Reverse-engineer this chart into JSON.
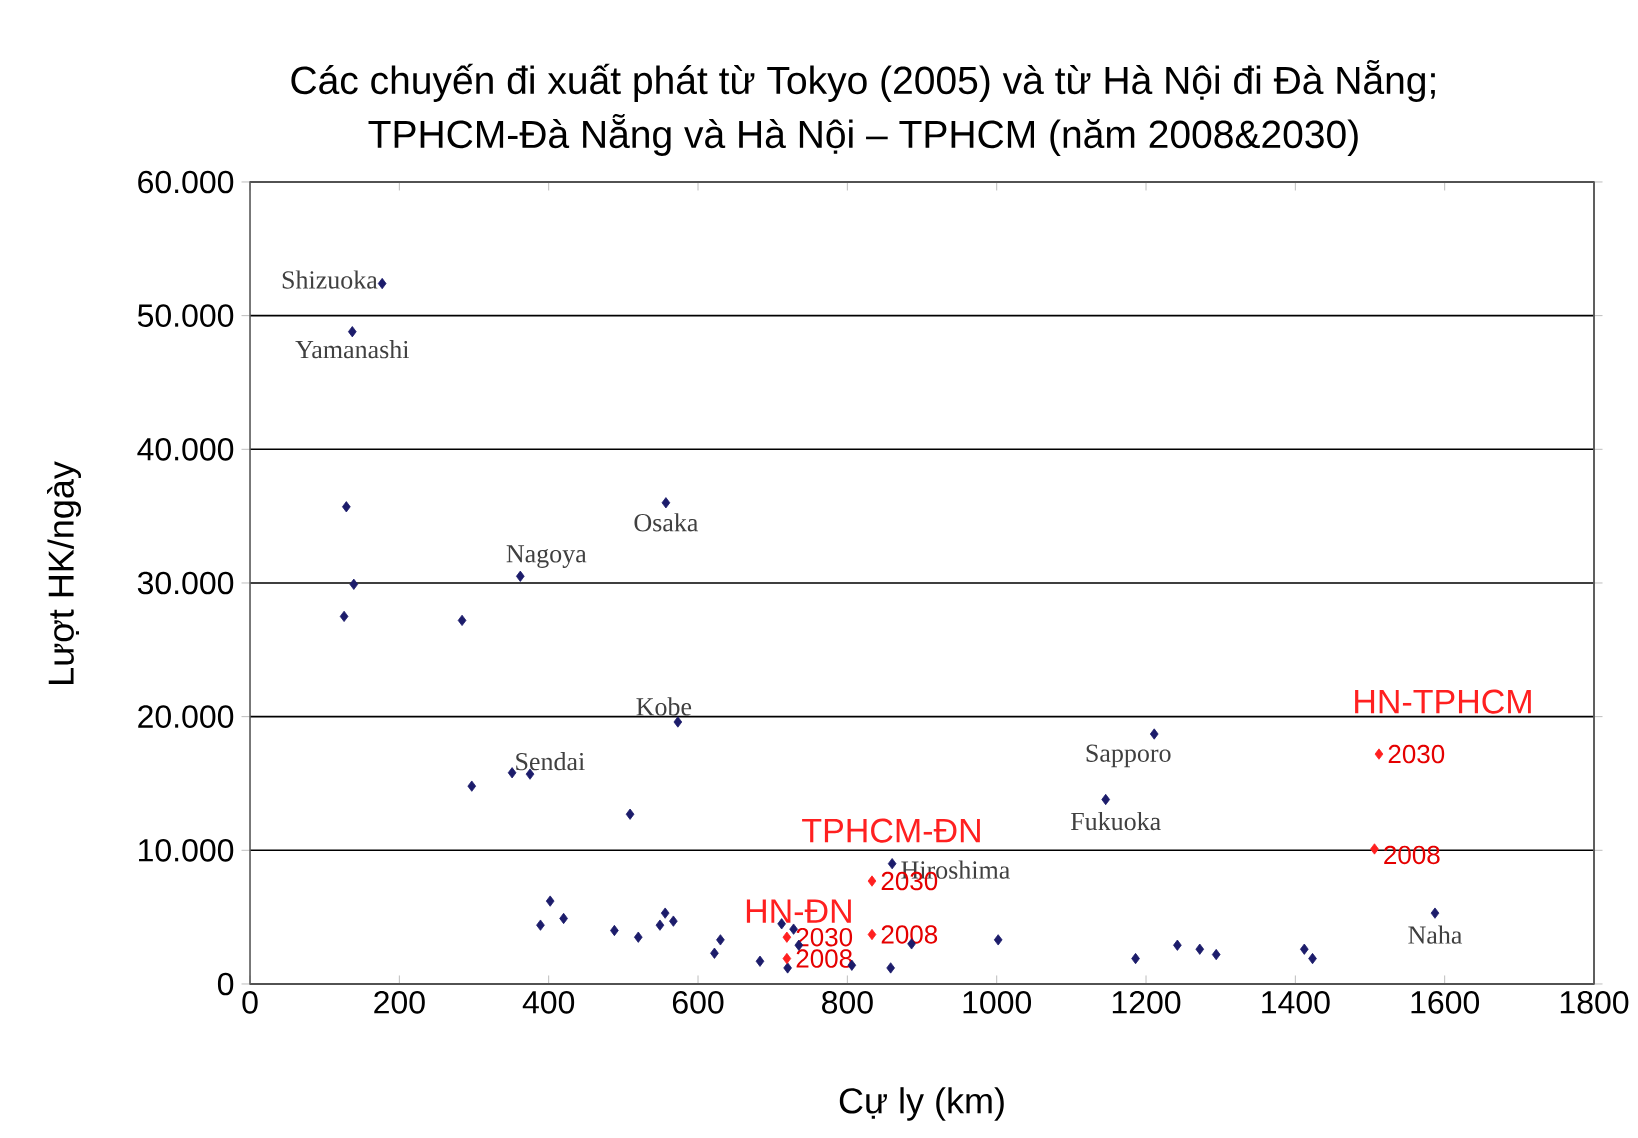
{
  "chart_data": {
    "type": "scatter",
    "title": "Các chuyến đi xuất phát từ Tokyo (2005) và từ Hà Nội đi Đà Nẵng; TPHCM-Đà Nẵng và Hà Nội – TPHCM (năm 2008&2030)",
    "xlabel": "Cự ly (km)",
    "ylabel": "Lượt HK/ngày",
    "xlim": [
      0,
      1800
    ],
    "xticks": [
      0,
      200,
      400,
      600,
      800,
      1000,
      1200,
      1400,
      1600,
      1800
    ],
    "ylim": [
      0,
      60000
    ],
    "yticks": [
      0,
      {
        "value": 10000,
        "label": "10.000"
      },
      {
        "value": 20000,
        "label": "20.000"
      },
      {
        "value": 30000,
        "label": "30.000"
      },
      {
        "value": 40000,
        "label": "40.000"
      },
      {
        "value": 50000,
        "label": "50.000"
      },
      {
        "value": 60000,
        "label": "60.000"
      }
    ],
    "grid": "y",
    "marker": "diamond",
    "series": [
      {
        "color": "#1c1c6b",
        "x": [
          177,
          137,
          129,
          139,
          126,
          284,
          362,
          557,
          573,
          351,
          375,
          297,
          509,
          1211,
          1146,
          860,
          402,
          389,
          420,
          488,
          520,
          556,
          549,
          567,
          630,
          622,
          683,
          712,
          728,
          735,
          720,
          806,
          858,
          886,
          1002,
          1186,
          1242,
          1272,
          1294,
          1412,
          1423,
          1587
        ],
        "values": [
          52400,
          48800,
          35700,
          29900,
          27500,
          27200,
          30500,
          36000,
          19600,
          15800,
          15700,
          14800,
          12700,
          18700,
          13800,
          9000,
          6200,
          4400,
          4900,
          4000,
          3500,
          5300,
          4400,
          4700,
          3300,
          2300,
          1700,
          4500,
          4100,
          2900,
          1200,
          1400,
          1200,
          3000,
          3300,
          1900,
          2900,
          2600,
          2200,
          2600,
          1900,
          5300
        ]
      },
      {
        "name": "HN-TPHCM",
        "color": "#ff2020",
        "x": [
          1512,
          1506
        ],
        "values": [
          17200,
          10100
        ]
      },
      {
        "name": "TPHCM-ĐN",
        "color": "#ff2020",
        "x": [
          833,
          833
        ],
        "values": [
          7700,
          3700
        ]
      },
      {
        "name": "HN-ĐN",
        "color": "#ff2020",
        "x": [
          719,
          719
        ],
        "values": [
          3500,
          1900
        ]
      }
    ],
    "annotations": [
      {
        "text": "Shizuoka",
        "x": 177,
        "y": 52400
      },
      {
        "text": "Yamanashi",
        "x": 137,
        "y": 48800
      },
      {
        "text": "Nagoya",
        "x": 362,
        "y": 30500
      },
      {
        "text": "Osaka",
        "x": 557,
        "y": 36000
      },
      {
        "text": "Kobe",
        "x": 573,
        "y": 19600
      },
      {
        "text": "Sendai",
        "x": 351,
        "y": 15800
      },
      {
        "text": "Sapporo",
        "x": 1211,
        "y": 18700
      },
      {
        "text": "Fukuoka",
        "x": 1146,
        "y": 13800
      },
      {
        "text": "Hiroshima",
        "x": 860,
        "y": 9000
      },
      {
        "text": "Naha",
        "x": 1587,
        "y": 5300
      },
      {
        "text": "2030",
        "x": 1512,
        "y": 17200
      },
      {
        "text": "2008",
        "x": 1506,
        "y": 10100
      },
      {
        "text": "2030",
        "x": 833,
        "y": 7700
      },
      {
        "text": "2008",
        "x": 833,
        "y": 3700
      },
      {
        "text": "2030",
        "x": 719,
        "y": 3500
      },
      {
        "text": "2008",
        "x": 719,
        "y": 1900
      }
    ]
  }
}
